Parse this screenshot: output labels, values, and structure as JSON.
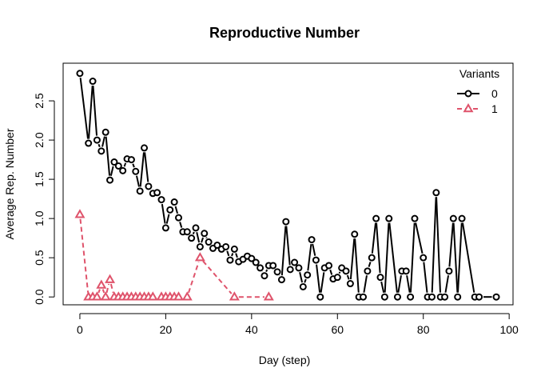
{
  "chart_data": {
    "type": "line",
    "title": "Reproductive Number",
    "xlabel": "Day (step)",
    "ylabel": "Average Rep. Number",
    "xlim": [
      -3.9,
      100.9
    ],
    "ylim": [
      -0.1,
      2.98
    ],
    "x_ticks": [
      0,
      20,
      40,
      60,
      80,
      100
    ],
    "y_ticks": [
      0.0,
      0.5,
      1.0,
      1.5,
      2.0,
      2.5
    ],
    "x_tick_labels": [
      "0",
      "20",
      "40",
      "60",
      "80",
      "100"
    ],
    "y_tick_labels": [
      "0.0",
      "0.5",
      "1.0",
      "1.5",
      "2.0",
      "2.5"
    ],
    "grid": false,
    "legend": {
      "title": "Variants",
      "position": "top-right"
    },
    "series": [
      {
        "name": "0",
        "color": "#000000",
        "marker": "circle",
        "line_style": "solid",
        "points": [
          [
            0,
            2.85
          ],
          [
            2,
            1.96
          ],
          [
            3,
            2.75
          ],
          [
            4,
            2.0
          ],
          [
            5,
            1.86
          ],
          [
            6,
            2.1
          ],
          [
            7,
            1.49
          ],
          [
            8,
            1.72
          ],
          [
            9,
            1.67
          ],
          [
            10,
            1.61
          ],
          [
            11,
            1.76
          ],
          [
            12,
            1.75
          ],
          [
            13,
            1.6
          ],
          [
            14,
            1.35
          ],
          [
            15,
            1.9
          ],
          [
            16,
            1.41
          ],
          [
            17,
            1.32
          ],
          [
            18,
            1.33
          ],
          [
            19,
            1.24
          ],
          [
            20,
            0.88
          ],
          [
            21,
            1.11
          ],
          [
            22,
            1.21
          ],
          [
            23,
            1.01
          ],
          [
            24,
            0.83
          ],
          [
            25,
            0.83
          ],
          [
            26,
            0.75
          ],
          [
            27,
            0.88
          ],
          [
            28,
            0.64
          ],
          [
            29,
            0.81
          ],
          [
            30,
            0.7
          ],
          [
            31,
            0.62
          ],
          [
            32,
            0.66
          ],
          [
            33,
            0.61
          ],
          [
            34,
            0.64
          ],
          [
            35,
            0.47
          ],
          [
            36,
            0.61
          ],
          [
            37,
            0.45
          ],
          [
            38,
            0.48
          ],
          [
            39,
            0.52
          ],
          [
            40,
            0.49
          ],
          [
            41,
            0.44
          ],
          [
            42,
            0.37
          ],
          [
            43,
            0.27
          ],
          [
            44,
            0.4
          ],
          [
            45,
            0.4
          ],
          [
            46,
            0.32
          ],
          [
            47,
            0.22
          ],
          [
            48,
            0.96
          ],
          [
            49,
            0.35
          ],
          [
            50,
            0.44
          ],
          [
            51,
            0.37
          ],
          [
            52,
            0.13
          ],
          [
            53,
            0.28
          ],
          [
            54,
            0.73
          ],
          [
            55,
            0.47
          ],
          [
            56,
            0.0
          ],
          [
            57,
            0.37
          ],
          [
            58,
            0.4
          ],
          [
            59,
            0.23
          ],
          [
            60,
            0.25
          ],
          [
            61,
            0.37
          ],
          [
            62,
            0.33
          ],
          [
            63,
            0.17
          ],
          [
            64,
            0.8
          ],
          [
            65,
            0.0
          ],
          [
            66,
            0.0
          ],
          [
            67,
            0.33
          ],
          [
            68,
            0.5
          ],
          [
            69,
            1.0
          ],
          [
            70,
            0.25
          ],
          [
            71,
            0.0
          ],
          [
            72,
            1.0
          ],
          [
            74,
            0.0
          ],
          [
            75,
            0.33
          ],
          [
            76,
            0.33
          ],
          [
            77,
            0.0
          ],
          [
            78,
            1.0
          ],
          [
            80,
            0.5
          ],
          [
            81,
            0.0
          ],
          [
            82,
            0.0
          ],
          [
            83,
            1.33
          ],
          [
            84,
            0.0
          ],
          [
            85,
            0.0
          ],
          [
            86,
            0.33
          ],
          [
            87,
            1.0
          ],
          [
            88,
            0.0
          ],
          [
            89,
            1.0
          ],
          [
            92,
            0.0
          ],
          [
            93,
            0.0
          ],
          [
            97,
            0.0
          ]
        ]
      },
      {
        "name": "1",
        "color": "#DF536B",
        "marker": "triangle",
        "line_style": "dashed",
        "points": [
          [
            0,
            1.05
          ],
          [
            2,
            0.0
          ],
          [
            3,
            0.0
          ],
          [
            4,
            0.0
          ],
          [
            5,
            0.15
          ],
          [
            6,
            0.0
          ],
          [
            7,
            0.22
          ],
          [
            8,
            0.0
          ],
          [
            9,
            0.0
          ],
          [
            10,
            0.0
          ],
          [
            11,
            0.0
          ],
          [
            12,
            0.0
          ],
          [
            13,
            0.0
          ],
          [
            14,
            0.0
          ],
          [
            15,
            0.0
          ],
          [
            16,
            0.0
          ],
          [
            17,
            0.0
          ],
          [
            19,
            0.0
          ],
          [
            20,
            0.0
          ],
          [
            21,
            0.0
          ],
          [
            22,
            0.0
          ],
          [
            23,
            0.0
          ],
          [
            25,
            0.0
          ],
          [
            28,
            0.5
          ],
          [
            36,
            0.0
          ],
          [
            44,
            0.0
          ]
        ]
      }
    ]
  }
}
